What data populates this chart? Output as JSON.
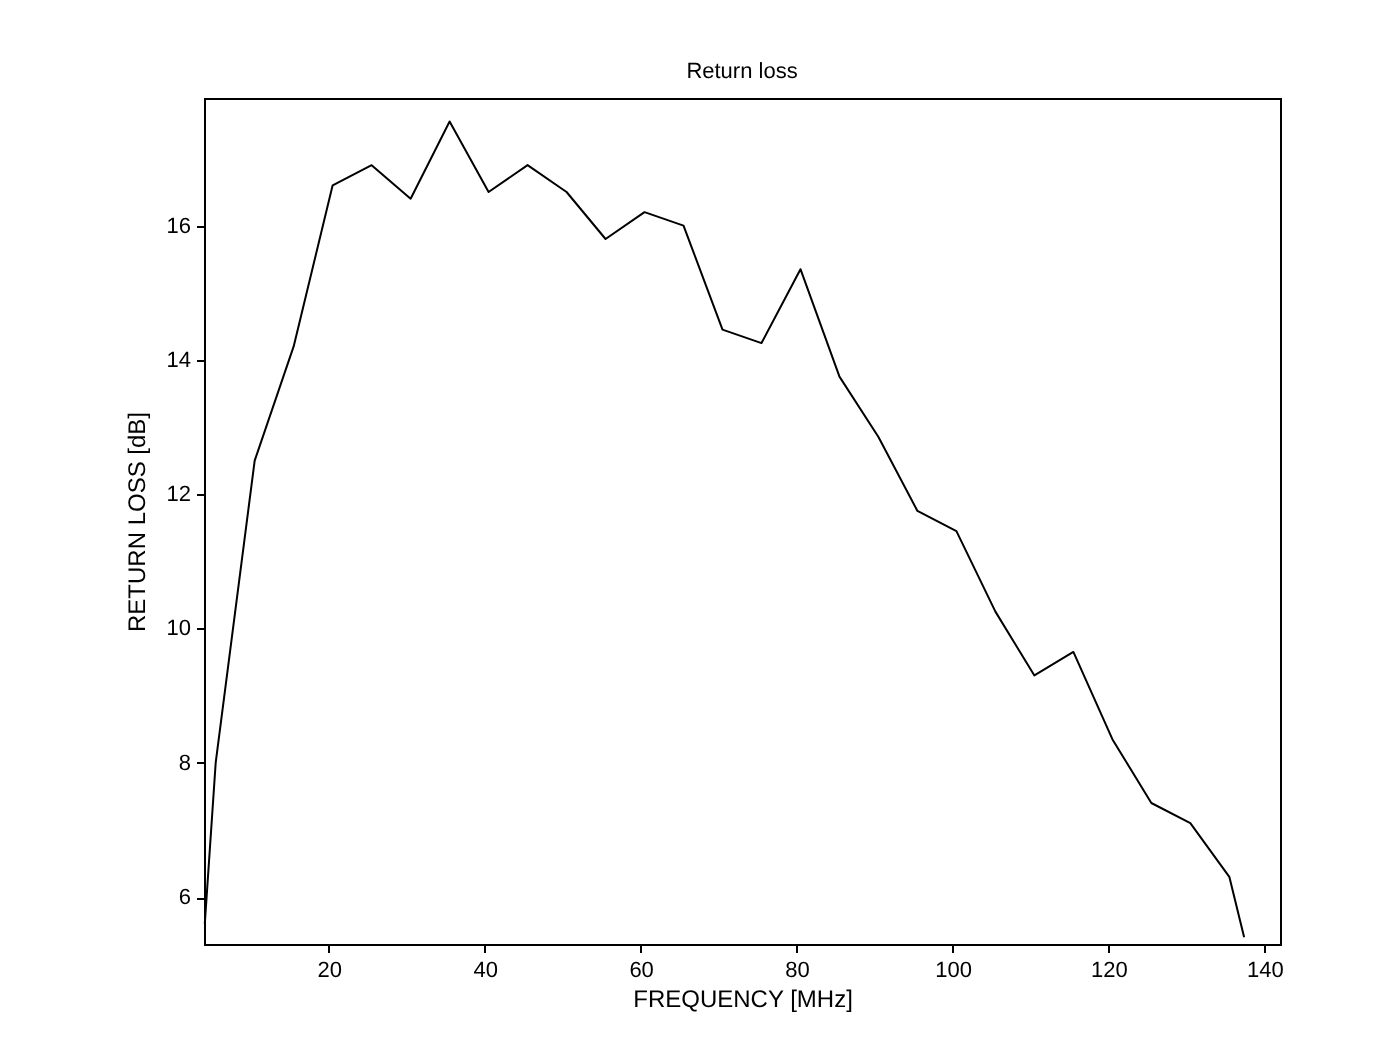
{
  "chart_data": {
    "type": "line",
    "title": "Return loss",
    "xlabel": "FREQUENCY [MHz]",
    "ylabel": "RETURN LOSS [dB]",
    "x": [
      4.1,
      5.5,
      10.5,
      15.5,
      20.5,
      25.5,
      30.5,
      35.5,
      40.5,
      45.5,
      50.5,
      55.5,
      60.5,
      65.5,
      70.5,
      75.5,
      80.5,
      85.5,
      90.5,
      95.5,
      100.5,
      105.5,
      110.5,
      115.5,
      120.5,
      125.5,
      130.5,
      135.5,
      137.4
    ],
    "series": [
      {
        "color": "#000000",
        "values": [
          5.6,
          8.0,
          12.5,
          14.2,
          16.6,
          16.9,
          16.4,
          17.55,
          16.5,
          16.9,
          16.5,
          15.8,
          16.2,
          16.0,
          14.45,
          14.25,
          15.35,
          13.75,
          12.85,
          11.75,
          11.45,
          10.25,
          9.3,
          9.65,
          8.35,
          7.4,
          7.1,
          6.3,
          5.4
        ]
      }
    ],
    "xlim": [
      4,
      142
    ],
    "xticks": [
      20,
      40,
      60,
      80,
      100,
      120,
      140
    ],
    "ylim": [
      5.3,
      17.9
    ],
    "yticks": [
      6,
      8,
      10,
      12,
      14,
      16
    ],
    "grid": false,
    "marker": "none",
    "line_style": "solid"
  }
}
